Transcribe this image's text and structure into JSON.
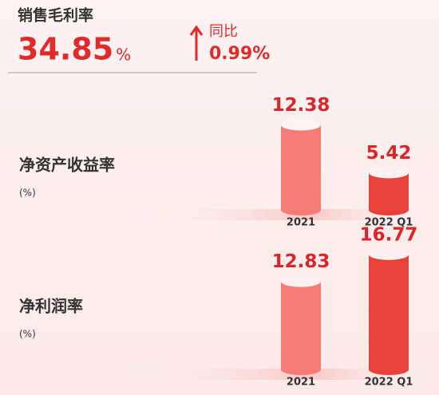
{
  "kpi": {
    "title": "销售毛利率",
    "value": "34.85",
    "unit": "%",
    "change_label": "同比",
    "change_value": "0.99%"
  },
  "chart_data": [
    {
      "type": "bar",
      "title": "净资产收益率",
      "subtitle": "(%)",
      "categories": [
        "2021",
        "2022 Q1"
      ],
      "values": [
        12.38,
        5.42
      ],
      "colors": [
        "#f57b76",
        "#e8413a"
      ]
    },
    {
      "type": "bar",
      "title": "净利润率",
      "subtitle": "(%)",
      "categories": [
        "2021",
        "2022 Q1"
      ],
      "values": [
        12.83,
        16.77
      ],
      "colors": [
        "#f57b76",
        "#e8413a"
      ]
    }
  ]
}
